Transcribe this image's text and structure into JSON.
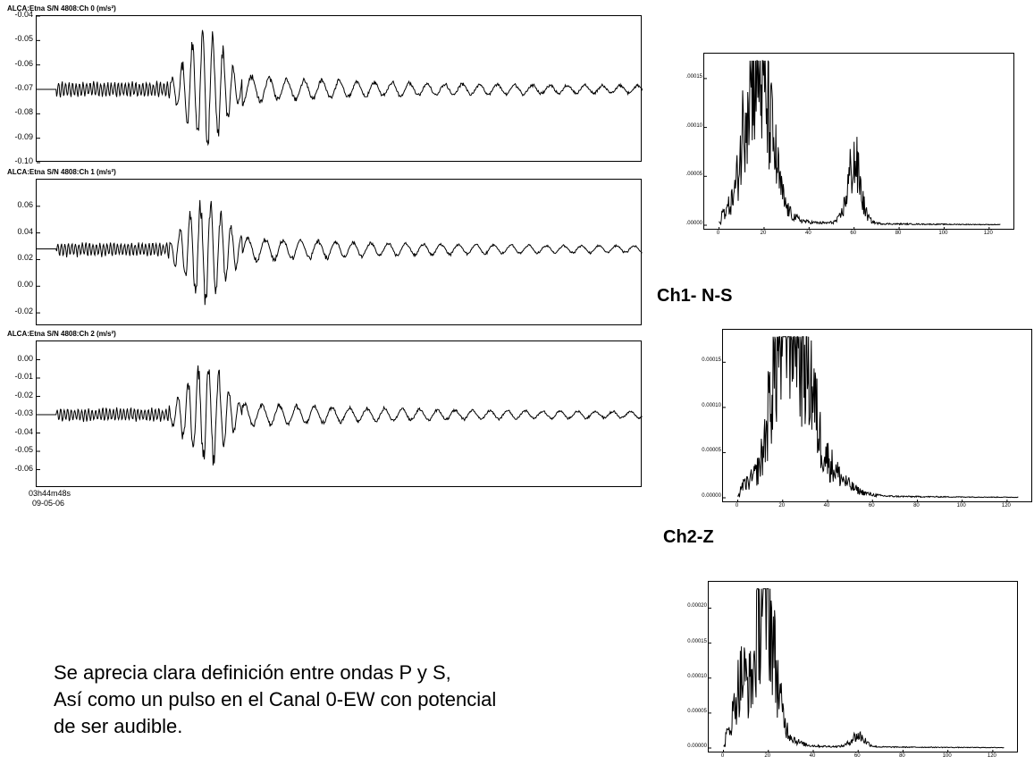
{
  "chart_data": [
    {
      "type": "line",
      "title": "ALCA:Etna S/N 4808:Ch 0 (m/s²)",
      "ylim": [
        -0.1,
        -0.04
      ],
      "yticks": [
        "-0.04",
        "-0.05",
        "-0.06",
        "-0.07",
        "-0.08",
        "-0.09",
        "-0.10"
      ],
      "baseline": -0.07,
      "peak_max": -0.041,
      "peak_min": -0.099
    },
    {
      "type": "line",
      "title": "ALCA:Etna S/N 4808:Ch 1 (m/s²)",
      "ylim": [
        -0.03,
        0.08
      ],
      "yticks": [
        "0.06",
        "0.04",
        "0.02",
        "0.00",
        "-0.02"
      ],
      "baseline": 0.028,
      "peak_max": 0.072,
      "peak_min": -0.026
    },
    {
      "type": "line",
      "title": "ALCA:Etna S/N 4808:Ch 2 (m/s²)",
      "ylim": [
        -0.07,
        0.01
      ],
      "yticks": [
        "0.00",
        "-0.01",
        "-0.02",
        "-0.03",
        "-0.04",
        "-0.05",
        "-0.06"
      ],
      "baseline": -0.03,
      "peak_max": 0.004,
      "peak_min": -0.064
    },
    {
      "type": "line",
      "xlim": [
        -5,
        130
      ],
      "ylim": [
        0,
        0.00017
      ],
      "xticks": [
        "0",
        "20",
        "40",
        "60",
        "80",
        "100",
        "120"
      ],
      "yticks": [
        ".00015",
        ".00010",
        ".00005",
        ".00000"
      ],
      "peaks": [
        [
          17,
          0.000165
        ],
        [
          60,
          9e-05
        ],
        [
          13,
          0.000115
        ],
        [
          23,
          8e-05
        ]
      ]
    },
    {
      "type": "line",
      "xlim": [
        -5,
        130
      ],
      "ylim": [
        0,
        0.00018
      ],
      "xticks": [
        "0",
        "20",
        "40",
        "60",
        "80",
        "100",
        "120"
      ],
      "yticks": [
        "0.00015",
        "0.00010",
        "0.00005",
        "0.00000"
      ],
      "peaks": [
        [
          21,
          0.000175
        ],
        [
          25,
          0.000175
        ],
        [
          31,
          0.000145
        ],
        [
          16,
          0.00011
        ]
      ]
    },
    {
      "type": "line",
      "xlim": [
        -5,
        130
      ],
      "ylim": [
        0,
        0.00023
      ],
      "xticks": [
        "0",
        "20",
        "40",
        "60",
        "80",
        "100",
        "120"
      ],
      "yticks": [
        "0.00020",
        "0.00015",
        "0.00010",
        "0.00005",
        "0.00000"
      ],
      "peaks": [
        [
          20,
          0.000225
        ],
        [
          17,
          0.00017
        ],
        [
          8,
          0.000135
        ],
        [
          60,
          3e-05
        ]
      ]
    }
  ],
  "labels": {
    "ch1": "Ch1- N-S",
    "ch2": "Ch2-Z",
    "time": "03h44m48s",
    "date": "09-05-06"
  },
  "note": {
    "line1": "Se aprecia clara definición entre ondas P y S,",
    "line2": "Así como un pulso en el Canal 0-EW con potencial",
    "line3": "de ser audible."
  }
}
